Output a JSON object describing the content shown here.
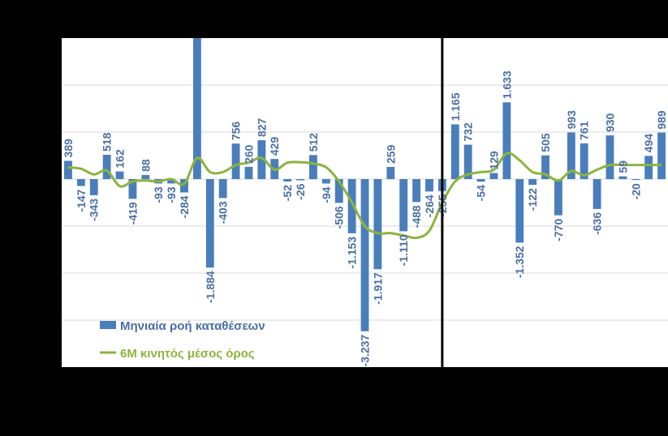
{
  "chart_data": {
    "type": "bar",
    "ylim": [
      -4000,
      3000
    ],
    "grid": true,
    "legend_position": "bottom-left",
    "series": [
      {
        "name": "Μηνιαία ροή καταθέσεων",
        "kind": "bar",
        "color": "#4a7ebb",
        "values": [
          389,
          -147,
          -343,
          518,
          162,
          -419,
          88,
          -93,
          -93,
          -284,
          3000,
          -1884,
          -403,
          756,
          260,
          827,
          429,
          -52,
          -26,
          512,
          -94,
          -506,
          -1153,
          -3237,
          -1917,
          259,
          -1110,
          -488,
          -264,
          -255,
          1165,
          732,
          -54,
          129,
          1633,
          -1352,
          -122,
          505,
          -770,
          993,
          761,
          -636,
          930,
          59,
          -20,
          494,
          989
        ]
      },
      {
        "name": "6M κινητός μέσος όρος",
        "kind": "line",
        "color": "#8cb43c",
        "values": [
          250,
          220,
          100,
          180,
          -150,
          -50,
          -30,
          -50,
          0,
          -100,
          450,
          150,
          150,
          300,
          350,
          450,
          200,
          350,
          360,
          330,
          250,
          -50,
          -500,
          -1000,
          -1150,
          -1150,
          -1200,
          -1250,
          -1100,
          -500,
          -50,
          100,
          150,
          200,
          550,
          400,
          150,
          100,
          -30,
          170,
          80,
          200,
          300,
          300,
          300,
          300,
          300
        ],
        "note_unused": ""
      }
    ],
    "bar_labels": [
      "389",
      "-147",
      "-343",
      "518",
      "162",
      "-419",
      "88",
      "-93",
      "-93",
      "-284",
      "",
      "-1.884",
      "-403",
      "756",
      "260",
      "827",
      "429",
      "-52",
      "-26",
      "512",
      "-94",
      "-506",
      "-1.153",
      "-3.237",
      "-1.917",
      "259",
      "-1.110",
      "-488",
      "-264",
      "-255",
      "1.165",
      "732",
      "-54",
      "129",
      "1.633",
      "-1.352",
      "-122",
      "505",
      "-770",
      "993",
      "761",
      "-636",
      "930",
      "59",
      "-20",
      "494",
      "989"
    ],
    "divider_after_index": 29
  },
  "legend": {
    "bar_label": "Μηνιαία ροή καταθέσεων",
    "line_label": "6M κινητός μέσος όρος"
  }
}
